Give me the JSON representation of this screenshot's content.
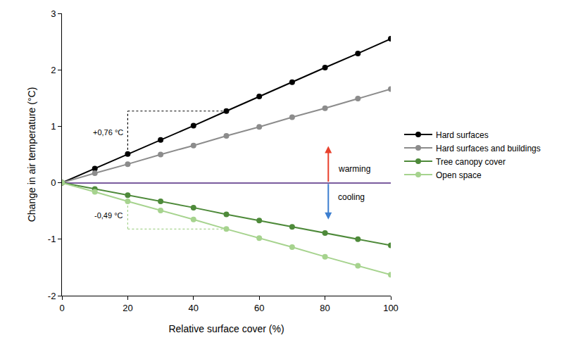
{
  "chart_data": {
    "type": "line",
    "x_label": "Relative surface cover (%)",
    "y_label": "Change in air temperature (°C)",
    "x": [
      0,
      10,
      20,
      30,
      40,
      50,
      60,
      70,
      80,
      90,
      100
    ],
    "series": [
      {
        "name": "Hard surfaces",
        "color": "#000000",
        "marker": "circle",
        "values": [
          0,
          0.25,
          0.51,
          0.76,
          1.01,
          1.27,
          1.53,
          1.78,
          2.04,
          2.29,
          2.55
        ]
      },
      {
        "name": "Hard surfaces and buildings",
        "color": "#8c8c8c",
        "marker": "circle",
        "values": [
          0,
          0.17,
          0.33,
          0.5,
          0.66,
          0.83,
          0.99,
          1.16,
          1.32,
          1.49,
          1.66
        ]
      },
      {
        "name": "Tree canopy cover",
        "color": "#4e8a3a",
        "marker": "circle",
        "values": [
          0,
          -0.11,
          -0.22,
          -0.33,
          -0.44,
          -0.56,
          -0.67,
          -0.78,
          -0.89,
          -1.0,
          -1.11
        ]
      },
      {
        "name": "Open space",
        "color": "#a6d38e",
        "marker": "circle",
        "values": [
          0,
          -0.16,
          -0.33,
          -0.49,
          -0.65,
          -0.82,
          -0.98,
          -1.14,
          -1.31,
          -1.47,
          -1.63
        ]
      }
    ],
    "xlim": [
      0,
      100
    ],
    "xticks": [
      0,
      20,
      40,
      60,
      80,
      100
    ],
    "ylim": [
      -2,
      3
    ],
    "yticks": [
      -2,
      -1,
      0,
      1,
      2,
      3
    ],
    "grid": false,
    "legend": "right",
    "annotations": [
      {
        "text": "+0,76 °C",
        "series": "Hard surfaces",
        "x": [
          20,
          50
        ]
      },
      {
        "text": "-0,49 °C",
        "series": "Open space",
        "x": [
          20,
          50
        ]
      },
      {
        "text": "warming",
        "direction": "up",
        "color": "#e8412c"
      },
      {
        "text": "cooling",
        "direction": "down",
        "color": "#3d7fd0"
      }
    ]
  }
}
